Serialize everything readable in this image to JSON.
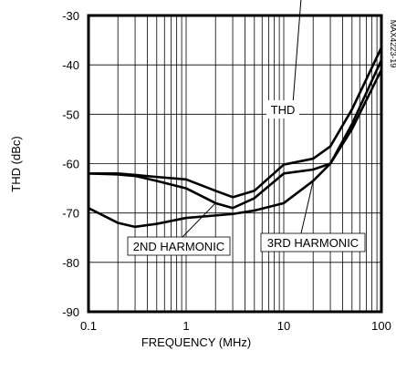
{
  "chart_data": {
    "type": "line",
    "x_label": "FREQUENCY (MHz)",
    "y_label": "THD (dBc)",
    "note": "MAX4223-19",
    "x_scale": "log",
    "x": [
      0.1,
      0.2,
      0.3,
      0.5,
      1,
      2,
      3,
      5,
      10,
      20,
      30,
      50,
      100
    ],
    "series": [
      {
        "name": "THD",
        "color": "#000000",
        "values": [
          -62,
          -62,
          -62.3,
          -62.7,
          -63.2,
          -65.5,
          -66.8,
          -65.5,
          -60.2,
          -59,
          -56.5,
          -49,
          -36.5
        ]
      },
      {
        "name": "2ND HARMONIC",
        "color": "#000000",
        "values": [
          -62,
          -62.2,
          -62.5,
          -63.5,
          -65,
          -68,
          -69,
          -67,
          -62,
          -61.2,
          -60,
          -52,
          -39
        ]
      },
      {
        "name": "3RD HARMONIC",
        "color": "#000000",
        "values": [
          -69,
          -72,
          -72.8,
          -72.2,
          -71,
          -70.5,
          -70.2,
          -69.5,
          -68,
          -63.5,
          -60,
          -53,
          -41
        ]
      }
    ],
    "xlim": [
      0.1,
      100
    ],
    "xticks": [
      0.1,
      1,
      10,
      100
    ],
    "x_minor_ticks": [
      0.2,
      0.3,
      0.4,
      0.5,
      0.6,
      0.7,
      0.8,
      0.9,
      2,
      3,
      4,
      5,
      6,
      7,
      8,
      9,
      20,
      30,
      40,
      50,
      60,
      70,
      80,
      90
    ],
    "ylim": [
      -90,
      -30
    ],
    "yticks": [
      -90,
      -80,
      -70,
      -60,
      -50,
      -40,
      -30
    ],
    "grid": true
  }
}
